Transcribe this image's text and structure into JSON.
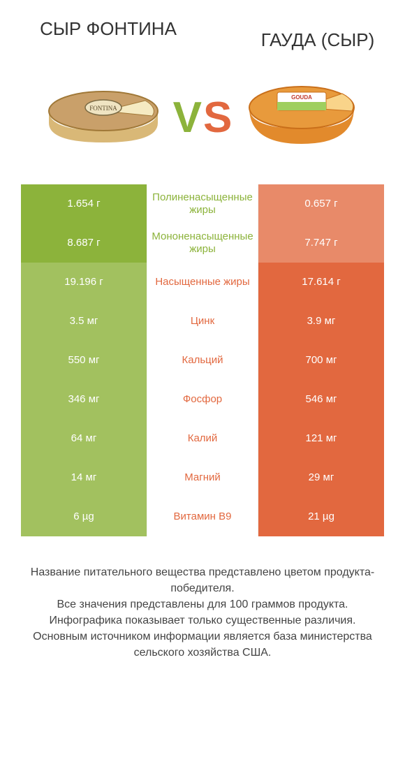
{
  "colors": {
    "left_primary": "#8cb33b",
    "left_dim": "#a2c15f",
    "right_primary": "#e2683f",
    "right_dim": "#e88a69",
    "vs_left": "#8cb33b",
    "vs_right": "#e2683f",
    "label_left_win": "#8cb33b",
    "label_right_win": "#e2683f"
  },
  "header": {
    "left": "СЫР ФОНТИНА",
    "right": "ГАУДА (СЫР)"
  },
  "vs": {
    "v": "V",
    "s": "S"
  },
  "rows": [
    {
      "left": "1.654 г",
      "label": "Полиненасыщенные жиры",
      "right": "0.657 г",
      "winner": "left"
    },
    {
      "left": "8.687 г",
      "label": "Мононенасыщенные жиры",
      "right": "7.747 г",
      "winner": "left"
    },
    {
      "left": "19.196 г",
      "label": "Насыщенные жиры",
      "right": "17.614 г",
      "winner": "right"
    },
    {
      "left": "3.5 мг",
      "label": "Цинк",
      "right": "3.9 мг",
      "winner": "right"
    },
    {
      "left": "550 мг",
      "label": "Кальций",
      "right": "700 мг",
      "winner": "right"
    },
    {
      "left": "346 мг",
      "label": "Фосфор",
      "right": "546 мг",
      "winner": "right"
    },
    {
      "left": "64 мг",
      "label": "Калий",
      "right": "121 мг",
      "winner": "right"
    },
    {
      "left": "14 мг",
      "label": "Магний",
      "right": "29 мг",
      "winner": "right"
    },
    {
      "left": "6 µg",
      "label": "Витамин B9",
      "right": "21 µg",
      "winner": "right"
    }
  ],
  "footer": {
    "l1": "Название питательного вещества представлено цветом продукта-победителя.",
    "l2": "Все значения представлены для 100 граммов продукта.",
    "l3": "Инфографика показывает только существенные различия.",
    "l4": "Основным источником информации является база министерства сельского хозяйства США."
  }
}
